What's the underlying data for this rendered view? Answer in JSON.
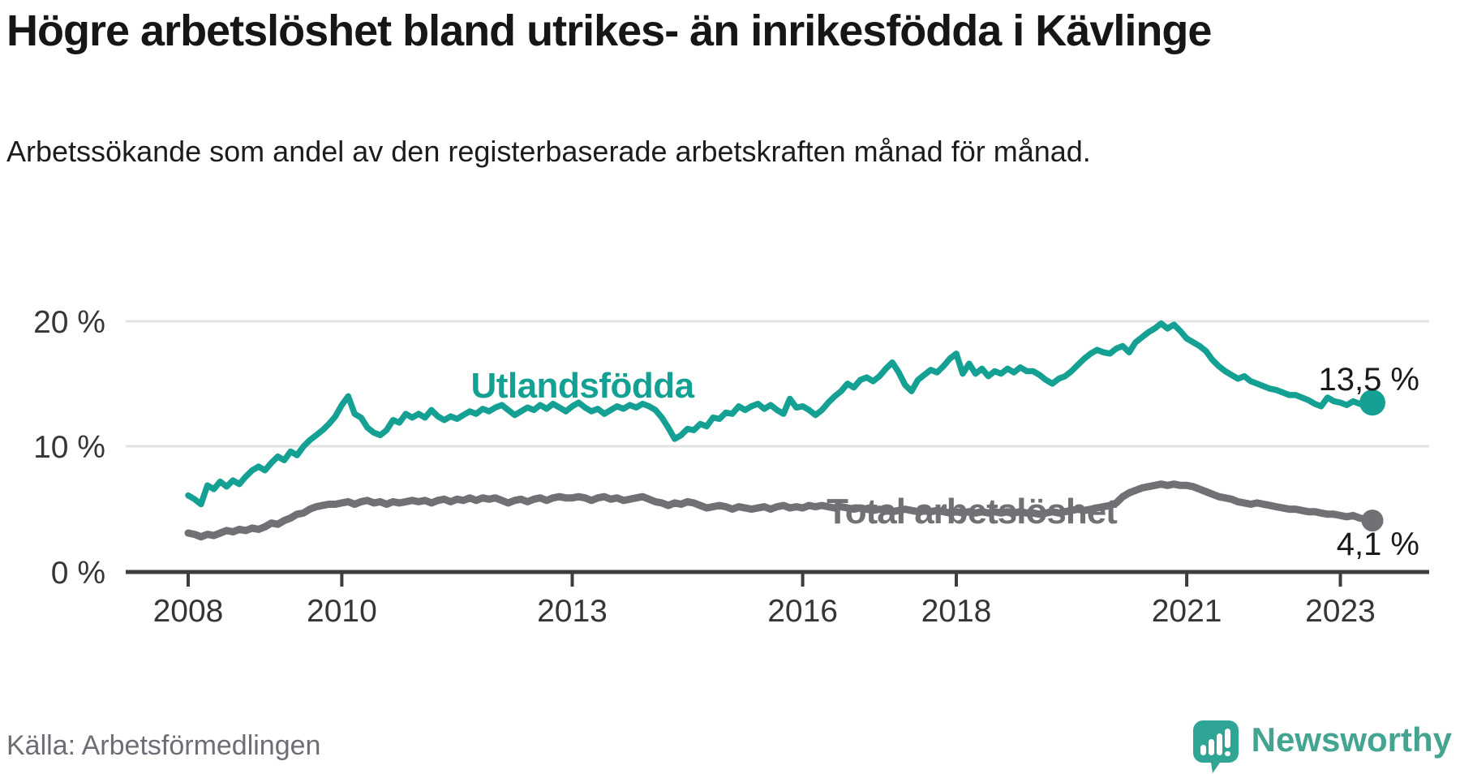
{
  "page": {
    "title": "Högre arbetslöshet bland utrikes- än inrikesfödda i Kävlinge",
    "subtitle": "Arbetssökande som andel av den registerbaserade arbetskraften månad för månad.",
    "source": "Källa: Arbetsförmedlingen",
    "brand": "Newsworthy"
  },
  "colors": {
    "series_foreign": "#14a193",
    "series_total": "#717175",
    "grid": "#e3e3e3",
    "axis": "#3d3d3d",
    "tick_text": "#363636",
    "value_text": "#1a1a1a",
    "brand_teal": "#2fa695",
    "brand_text": "#43a492"
  },
  "chart_data": {
    "type": "line",
    "title": "Högre arbetslöshet bland utrikes- än inrikesfödda i Kävlinge",
    "subtitle": "Arbetssökande som andel av den registerbaserade arbetskraften månad för månad.",
    "x_unit": "month",
    "x_start_year": 2008,
    "x_start_month": 1,
    "x_end": "2023-06",
    "xlim": [
      2007.2,
      2024.1
    ],
    "ylim": [
      0,
      21
    ],
    "grid": "horizontal",
    "legend_position": "inline-labels",
    "xticks": [
      {
        "year": 2008,
        "label": "2008"
      },
      {
        "year": 2010,
        "label": "2010"
      },
      {
        "year": 2013,
        "label": "2013"
      },
      {
        "year": 2016,
        "label": "2016"
      },
      {
        "year": 2018,
        "label": "2018"
      },
      {
        "year": 2021,
        "label": "2021"
      },
      {
        "year": 2023,
        "label": "2023"
      }
    ],
    "yticks": [
      {
        "value": 20,
        "label": "20 %"
      },
      {
        "value": 10,
        "label": "10 %"
      },
      {
        "value": 0,
        "label": "0 %"
      }
    ],
    "series": [
      {
        "name": "Utlandsfödda",
        "color": "#14a193",
        "end_value": 13.5,
        "end_label": "13,5 %",
        "values": [
          6.1,
          5.8,
          5.4,
          6.9,
          6.6,
          7.2,
          6.8,
          7.3,
          7.0,
          7.6,
          8.1,
          8.4,
          8.1,
          8.7,
          9.2,
          8.9,
          9.6,
          9.3,
          10.0,
          10.5,
          10.9,
          11.3,
          11.8,
          12.4,
          13.3,
          14.0,
          12.6,
          12.3,
          11.5,
          11.1,
          10.9,
          11.3,
          12.1,
          11.9,
          12.6,
          12.3,
          12.6,
          12.3,
          12.9,
          12.4,
          12.1,
          12.4,
          12.2,
          12.5,
          12.8,
          12.6,
          13.0,
          12.8,
          13.1,
          13.3,
          12.9,
          12.5,
          12.8,
          13.1,
          12.9,
          13.3,
          13.0,
          13.4,
          13.1,
          12.8,
          13.2,
          13.5,
          13.1,
          12.8,
          13.0,
          12.6,
          12.9,
          13.2,
          13.0,
          13.3,
          13.1,
          13.4,
          13.2,
          12.9,
          12.3,
          11.5,
          10.6,
          10.9,
          11.4,
          11.3,
          11.8,
          11.6,
          12.3,
          12.2,
          12.7,
          12.6,
          13.2,
          12.9,
          13.2,
          13.4,
          13.0,
          13.3,
          12.9,
          12.6,
          13.8,
          13.1,
          13.2,
          12.9,
          12.5,
          12.9,
          13.5,
          14.0,
          14.4,
          15.0,
          14.7,
          15.3,
          15.5,
          15.2,
          15.6,
          16.2,
          16.7,
          15.9,
          14.9,
          14.4,
          15.3,
          15.7,
          16.1,
          15.9,
          16.4,
          17.0,
          17.4,
          15.8,
          16.6,
          15.8,
          16.2,
          15.6,
          16.0,
          15.8,
          16.2,
          15.9,
          16.3,
          16.0,
          16.0,
          15.7,
          15.3,
          15.0,
          15.4,
          15.6,
          16.0,
          16.5,
          17.0,
          17.4,
          17.7,
          17.5,
          17.4,
          17.8,
          18.0,
          17.5,
          18.3,
          18.7,
          19.1,
          19.4,
          19.8,
          19.4,
          19.7,
          19.2,
          18.6,
          18.3,
          18.0,
          17.6,
          16.9,
          16.4,
          16.0,
          15.7,
          15.4,
          15.6,
          15.2,
          15.0,
          14.8,
          14.6,
          14.5,
          14.3,
          14.1,
          14.1,
          13.9,
          13.7,
          13.4,
          13.2,
          13.9,
          13.6,
          13.5,
          13.3,
          13.6,
          13.4,
          13.3,
          13.5
        ]
      },
      {
        "name": "Total arbetslöshet",
        "color": "#717175",
        "end_value": 4.1,
        "end_label": "4,1 %",
        "values": [
          3.1,
          3.0,
          2.8,
          3.0,
          2.9,
          3.1,
          3.3,
          3.2,
          3.4,
          3.3,
          3.5,
          3.4,
          3.6,
          3.9,
          3.8,
          4.1,
          4.3,
          4.6,
          4.7,
          5.0,
          5.2,
          5.3,
          5.4,
          5.4,
          5.5,
          5.6,
          5.4,
          5.6,
          5.7,
          5.5,
          5.6,
          5.4,
          5.6,
          5.5,
          5.6,
          5.7,
          5.6,
          5.7,
          5.5,
          5.7,
          5.8,
          5.6,
          5.8,
          5.7,
          5.9,
          5.7,
          5.9,
          5.8,
          5.9,
          5.7,
          5.5,
          5.7,
          5.8,
          5.6,
          5.8,
          5.9,
          5.7,
          5.9,
          6.0,
          5.9,
          5.9,
          6.0,
          5.9,
          5.7,
          5.9,
          6.0,
          5.8,
          5.9,
          5.7,
          5.8,
          5.9,
          6.0,
          5.8,
          5.6,
          5.5,
          5.3,
          5.5,
          5.4,
          5.6,
          5.5,
          5.3,
          5.1,
          5.2,
          5.3,
          5.2,
          5.0,
          5.2,
          5.1,
          5.0,
          5.1,
          5.2,
          5.0,
          5.2,
          5.3,
          5.1,
          5.2,
          5.1,
          5.3,
          5.2,
          5.3,
          5.2,
          5.1,
          5.2,
          5.1,
          5.0,
          5.1,
          5.0,
          4.9,
          5.0,
          4.9,
          4.8,
          4.9,
          5.0,
          4.9,
          4.8,
          4.9,
          4.8,
          4.9,
          4.8,
          4.7,
          4.8,
          4.7,
          4.8,
          4.7,
          4.8,
          4.7,
          4.8,
          4.7,
          4.8,
          4.7,
          4.8,
          4.7,
          4.7,
          4.6,
          4.7,
          4.8,
          4.7,
          4.8,
          4.9,
          5.0,
          4.9,
          5.0,
          5.1,
          5.2,
          5.3,
          5.5,
          6.0,
          6.3,
          6.5,
          6.7,
          6.8,
          6.9,
          7.0,
          6.9,
          7.0,
          6.9,
          6.9,
          6.8,
          6.6,
          6.4,
          6.2,
          6.0,
          5.9,
          5.8,
          5.6,
          5.5,
          5.4,
          5.5,
          5.4,
          5.3,
          5.2,
          5.1,
          5.0,
          5.0,
          4.9,
          4.8,
          4.8,
          4.7,
          4.6,
          4.6,
          4.5,
          4.4,
          4.5,
          4.3,
          4.2,
          4.1
        ]
      }
    ]
  }
}
